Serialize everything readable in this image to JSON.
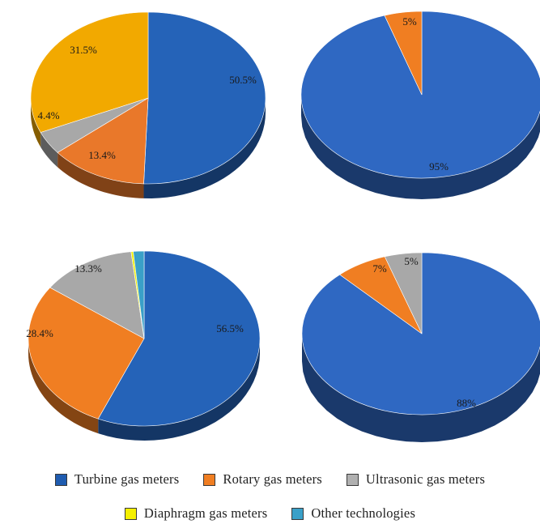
{
  "colors": {
    "turbine": "#2563b8",
    "rotary": "#f07e22",
    "ultrasonic": "#a6a6a6",
    "diaphragm": "#f0f000",
    "other": "#3aa0c8",
    "turbine_yellow_variant": "#f0a800"
  },
  "legend": {
    "items": [
      {
        "label": "Turbine gas meters",
        "color": "#1f5cb0"
      },
      {
        "label": "Rotary gas meters",
        "color": "#f07e22"
      },
      {
        "label": "Ultrasonic gas meters",
        "color": "#b0b0b0"
      },
      {
        "label": "Diaphragm gas meters",
        "color": "#f5f000"
      },
      {
        "label": "Other technologies",
        "color": "#3aa0c8"
      }
    ]
  },
  "chart_data": [
    {
      "type": "pie",
      "slices": [
        {
          "label": "50.5%",
          "value": 50.5,
          "color": "#2563b8"
        },
        {
          "label": "13.4%",
          "value": 13.4,
          "color": "#e9782a"
        },
        {
          "label": "4.4%",
          "value": 4.4,
          "color": "#a8a8a8"
        },
        {
          "label": "31.5%",
          "value": 31.5,
          "color": "#f2a900"
        }
      ]
    },
    {
      "type": "pie",
      "slices": [
        {
          "label": "95%",
          "value": 95,
          "color": "#2f68c2"
        },
        {
          "label": "5%",
          "value": 5,
          "color": "#f07e22"
        }
      ]
    },
    {
      "type": "pie",
      "slices": [
        {
          "label": "56.5%",
          "value": 56.5,
          "color": "#2563b8"
        },
        {
          "label": "28.4%",
          "value": 28.4,
          "color": "#f07e22"
        },
        {
          "label": "13.3%",
          "value": 13.3,
          "color": "#a8a8a8"
        },
        {
          "label": "",
          "value": 0.3,
          "color": "#f0f000"
        },
        {
          "label": "",
          "value": 1.5,
          "color": "#3aa0c8"
        }
      ]
    },
    {
      "type": "pie",
      "slices": [
        {
          "label": "88%",
          "value": 88,
          "color": "#2f68c2"
        },
        {
          "label": "7%",
          "value": 7,
          "color": "#f07e22"
        },
        {
          "label": "5%",
          "value": 5,
          "color": "#a8a8a8"
        }
      ]
    }
  ]
}
